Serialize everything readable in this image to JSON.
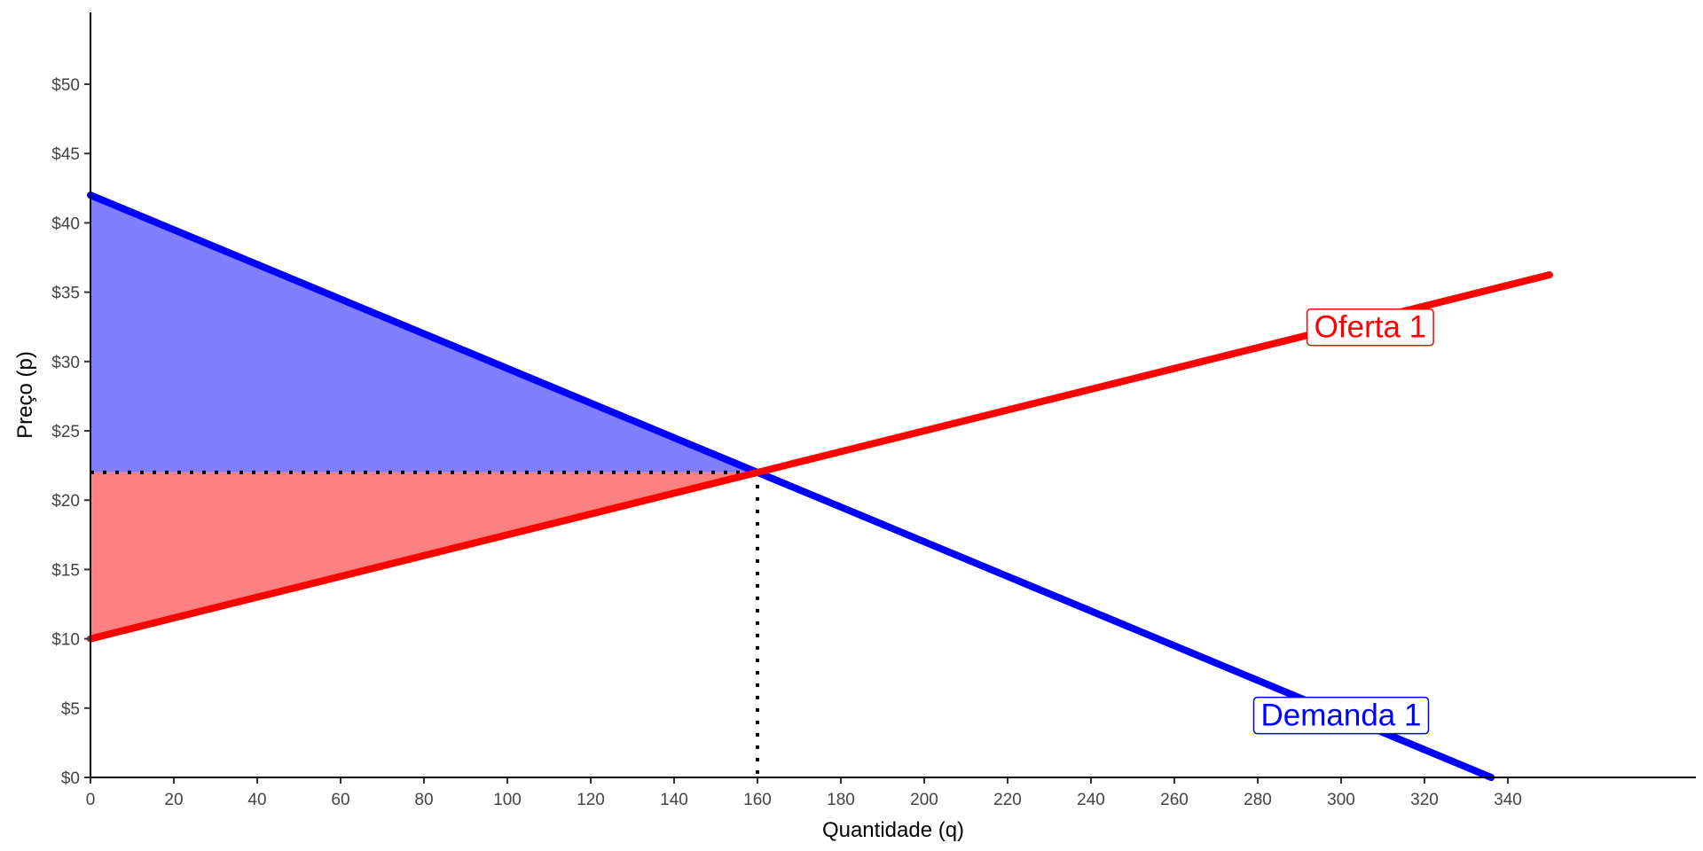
{
  "chart_data": {
    "type": "line",
    "title": "",
    "xlabel": "Quantidade (q)",
    "ylabel": "Preço (p)",
    "xlim": [
      0,
      385
    ],
    "ylim": [
      0,
      54
    ],
    "x_ticks": [
      0,
      20,
      40,
      60,
      80,
      100,
      120,
      140,
      160,
      180,
      200,
      220,
      240,
      260,
      280,
      300,
      320,
      340
    ],
    "x_tick_labels": [
      "0",
      "20",
      "40",
      "60",
      "80",
      "100",
      "120",
      "140",
      "160",
      "180",
      "200",
      "220",
      "240",
      "260",
      "280",
      "300",
      "320",
      "340"
    ],
    "y_ticks": [
      0,
      5,
      10,
      15,
      20,
      25,
      30,
      35,
      40,
      45,
      50
    ],
    "y_tick_labels": [
      "$0",
      "$5",
      "$10",
      "$15",
      "$20",
      "$25",
      "$30",
      "$35",
      "$40",
      "$45",
      "$50"
    ],
    "grid": false,
    "series": [
      {
        "name": "Demanda 1",
        "color": "#0000ff",
        "x": [
          0,
          336
        ],
        "y": [
          42,
          0
        ]
      },
      {
        "name": "Oferta 1",
        "color": "#ff0000",
        "x": [
          0,
          350
        ],
        "y": [
          10,
          36.25
        ]
      }
    ],
    "equilibrium": {
      "q": 160,
      "p": 22
    },
    "shaded_regions": [
      {
        "color": "#8080ff",
        "points": [
          [
            0,
            42
          ],
          [
            160,
            22
          ],
          [
            0,
            22
          ]
        ]
      },
      {
        "color": "#ff8080",
        "points": [
          [
            0,
            10
          ],
          [
            160,
            22
          ],
          [
            0,
            22
          ]
        ]
      }
    ],
    "annotations": [
      {
        "text": "Oferta 1",
        "x": 307,
        "y": 32.5,
        "color": "#ff0000"
      },
      {
        "text": "Demanda 1",
        "x": 300,
        "y": 4.5,
        "color": "#0000ff"
      }
    ]
  }
}
